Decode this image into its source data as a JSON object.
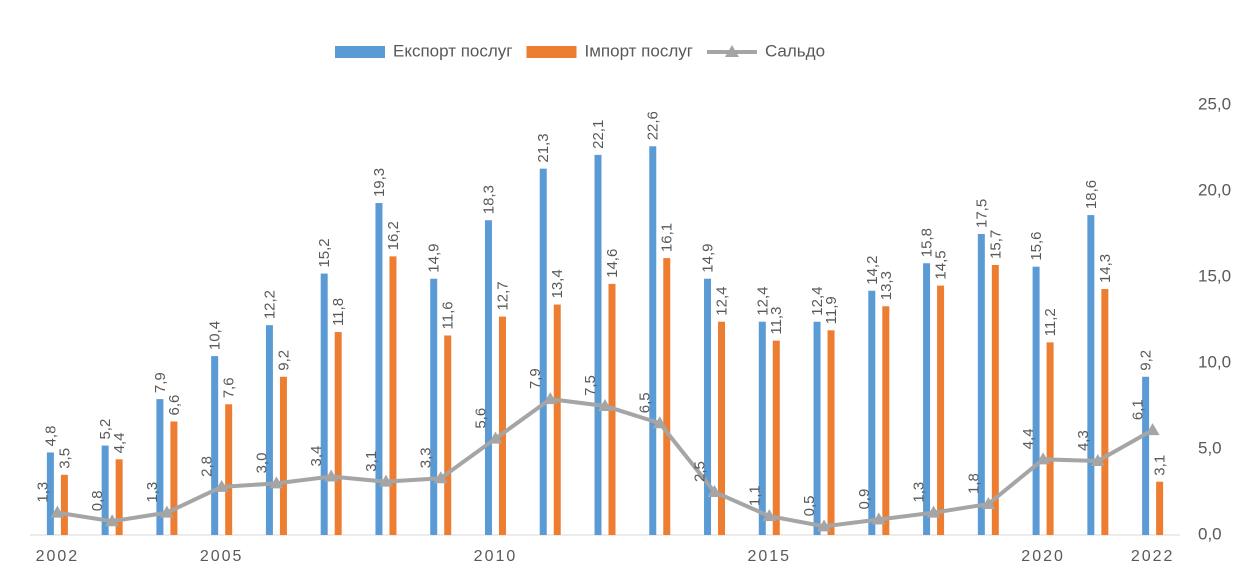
{
  "chart_data": {
    "type": "bar",
    "categories": [
      "2002",
      null,
      null,
      "2005",
      null,
      null,
      null,
      null,
      "2010",
      null,
      null,
      null,
      null,
      "2015",
      null,
      null,
      null,
      null,
      "2020",
      null,
      "2022"
    ],
    "series": [
      {
        "name": "Експорт послуг",
        "color": "#5b9bd5",
        "type": "bar",
        "values": [
          4.8,
          5.2,
          7.9,
          10.4,
          12.2,
          15.2,
          19.3,
          14.9,
          18.3,
          21.3,
          22.1,
          22.6,
          14.9,
          12.4,
          12.4,
          14.2,
          15.8,
          17.5,
          15.6,
          18.6,
          9.2
        ],
        "value_labels": [
          "4,8",
          "5,2",
          "7,9",
          "10,4",
          "12,2",
          "15,2",
          "19,3",
          "14,9",
          "18,3",
          "21,3",
          "22,1",
          "22,6",
          "14,9",
          "12,4",
          "12,4",
          "14,2",
          "15,8",
          "17,5",
          "15,6",
          "18,6",
          "9,2"
        ]
      },
      {
        "name": "Імпорт послуг",
        "color": "#ed7d31",
        "type": "bar",
        "values": [
          3.5,
          4.4,
          6.6,
          7.6,
          9.2,
          11.8,
          16.2,
          11.6,
          12.7,
          13.4,
          14.6,
          16.1,
          12.4,
          11.3,
          11.9,
          13.3,
          14.5,
          15.7,
          11.2,
          14.3,
          3.1
        ],
        "value_labels": [
          "3,5",
          "4,4",
          "6,6",
          "7,6",
          "9,2",
          "11,8",
          "16,2",
          "11,6",
          "12,7",
          "13,4",
          "14,6",
          "16,1",
          "12,4",
          "11,3",
          "11,9",
          "13,3",
          "14,5",
          "15,7",
          "11,2",
          "14,3",
          "3,1"
        ]
      },
      {
        "name": "Сальдо",
        "color": "#a5a5a5",
        "type": "line",
        "values": [
          1.3,
          0.8,
          1.3,
          2.8,
          3.0,
          3.4,
          3.1,
          3.3,
          5.6,
          7.9,
          7.5,
          6.5,
          2.5,
          1.1,
          0.5,
          0.9,
          1.3,
          1.8,
          4.4,
          4.3,
          6.1
        ],
        "value_labels": [
          "1,3",
          "0,8",
          "1,3",
          "2,8",
          "3,0",
          "3,4",
          "3,1",
          "3,3",
          "5,6",
          "7,9",
          "7,5",
          "6,5",
          "2,5",
          "1,1",
          "0,5",
          "0,9",
          "1,3",
          "1,8",
          "4,4",
          "4,3",
          "6,1"
        ]
      }
    ],
    "ylim": [
      0,
      25
    ],
    "yticks": [
      {
        "value": 0,
        "label": "0,0"
      },
      {
        "value": 5,
        "label": "5,0"
      },
      {
        "value": 10,
        "label": "10,0"
      },
      {
        "value": 15,
        "label": "15,0"
      },
      {
        "value": 20,
        "label": "20,0"
      },
      {
        "value": 25,
        "label": "25,0"
      }
    ],
    "legend": "top"
  }
}
